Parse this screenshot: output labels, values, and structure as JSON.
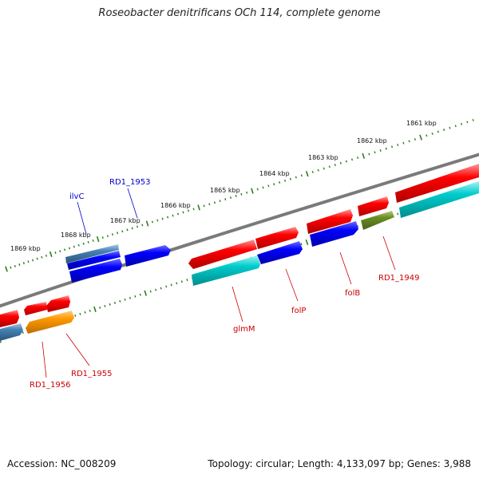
{
  "title": "Roseobacter denitrificans OCh 114, complete genome",
  "footer": {
    "accession": "Accession: NC_008209",
    "summary": "Topology: circular; Length: 4,133,097 bp; Genes: 3,988"
  },
  "colors": {
    "backbone": "#7a7a7a",
    "tick": "#2e7d1f",
    "red": "#ff0000",
    "blue": "#0000ff",
    "cyan": "#00cccc",
    "steelblue": "#4682b4",
    "orange": "#ff9900",
    "olive": "#6b8e23",
    "label_forward": "#0000cc",
    "label_reverse": "#cc0000"
  },
  "scale": {
    "unit": "kbp",
    "labels": [
      "1861 kbp",
      "1862 kbp",
      "1863 kbp",
      "1864 kbp",
      "1865 kbp",
      "1866 kbp",
      "1867 kbp",
      "1868 kbp",
      "1869 kbp"
    ]
  },
  "gene_labels": [
    {
      "text": "ilvC",
      "strand": "forward"
    },
    {
      "text": "RD1_1953",
      "strand": "forward"
    },
    {
      "text": "glmM",
      "strand": "reverse"
    },
    {
      "text": "folP",
      "strand": "reverse"
    },
    {
      "text": "folB",
      "strand": "reverse"
    },
    {
      "text": "RD1_1949",
      "strand": "reverse"
    },
    {
      "text": "RD1_1955",
      "strand": "reverse"
    },
    {
      "text": "RD1_1956",
      "strand": "reverse"
    }
  ],
  "genes": [
    {
      "id": "ilvC",
      "strand": "forward",
      "color": "steelblue"
    },
    {
      "id": "RD1_1953",
      "strand": "forward",
      "color": "blue"
    },
    {
      "id": "forward-blue-2",
      "strand": "forward",
      "color": "blue"
    },
    {
      "id": "RD1_1949",
      "strand": "reverse",
      "color": "olive"
    },
    {
      "id": "folB",
      "strand": "reverse",
      "color": "blue"
    },
    {
      "id": "folP",
      "strand": "reverse",
      "color": "blue"
    },
    {
      "id": "glmM",
      "strand": "reverse",
      "color": "cyan"
    },
    {
      "id": "RD1_1955",
      "strand": "reverse",
      "color": "orange"
    },
    {
      "id": "RD1_1956",
      "strand": "reverse",
      "color": "steelblue"
    }
  ]
}
